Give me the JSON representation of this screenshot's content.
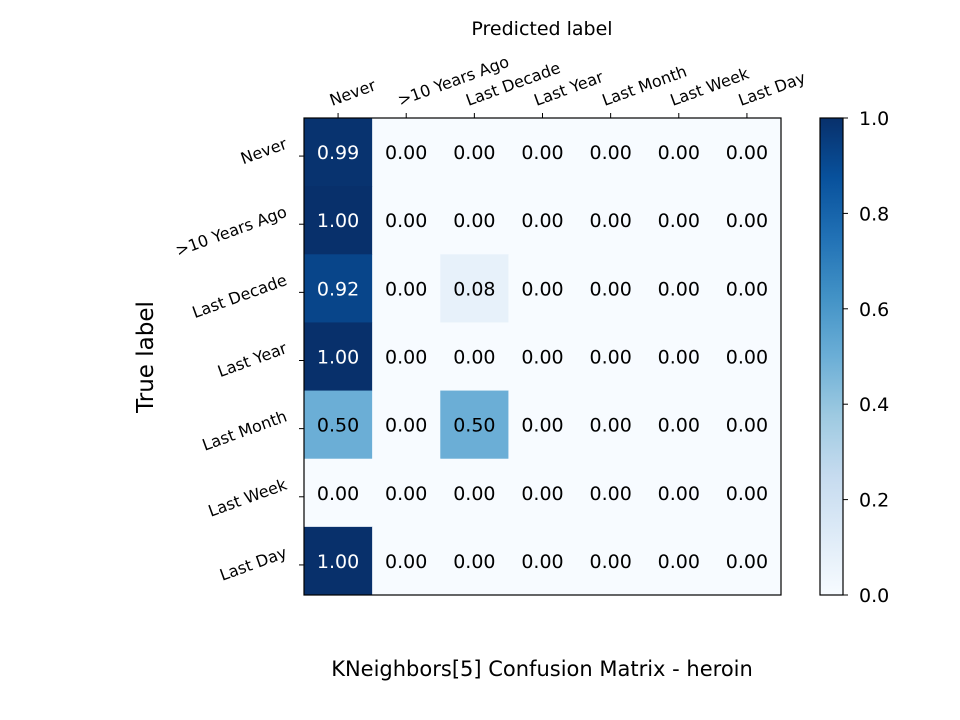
{
  "chart_data": {
    "type": "heatmap",
    "title": "KNeighbors[5]  Confusion Matrix - heroin",
    "xlabel": "Predicted label",
    "ylabel": "True label",
    "x_categories": [
      "Never",
      ">10 Years Ago",
      "Last Decade",
      "Last Year",
      "Last Month",
      "Last Week",
      "Last Day"
    ],
    "y_categories": [
      "Never",
      ">10 Years Ago",
      "Last Decade",
      "Last Year",
      "Last Month",
      "Last Week",
      "Last Day"
    ],
    "values": [
      [
        0.99,
        0.0,
        0.0,
        0.0,
        0.0,
        0.0,
        0.0
      ],
      [
        1.0,
        0.0,
        0.0,
        0.0,
        0.0,
        0.0,
        0.0
      ],
      [
        0.92,
        0.0,
        0.08,
        0.0,
        0.0,
        0.0,
        0.0
      ],
      [
        1.0,
        0.0,
        0.0,
        0.0,
        0.0,
        0.0,
        0.0
      ],
      [
        0.5,
        0.0,
        0.5,
        0.0,
        0.0,
        0.0,
        0.0
      ],
      [
        0.0,
        0.0,
        0.0,
        0.0,
        0.0,
        0.0,
        0.0
      ],
      [
        1.0,
        0.0,
        0.0,
        0.0,
        0.0,
        0.0,
        0.0
      ]
    ],
    "value_format": "2 decimals",
    "colormap": "Blues",
    "colorbar": {
      "range": [
        0.0,
        1.0
      ],
      "ticks": [
        "0.0",
        "0.2",
        "0.4",
        "0.6",
        "0.8",
        "1.0"
      ]
    },
    "x_tick_position": "top",
    "grid": false
  }
}
